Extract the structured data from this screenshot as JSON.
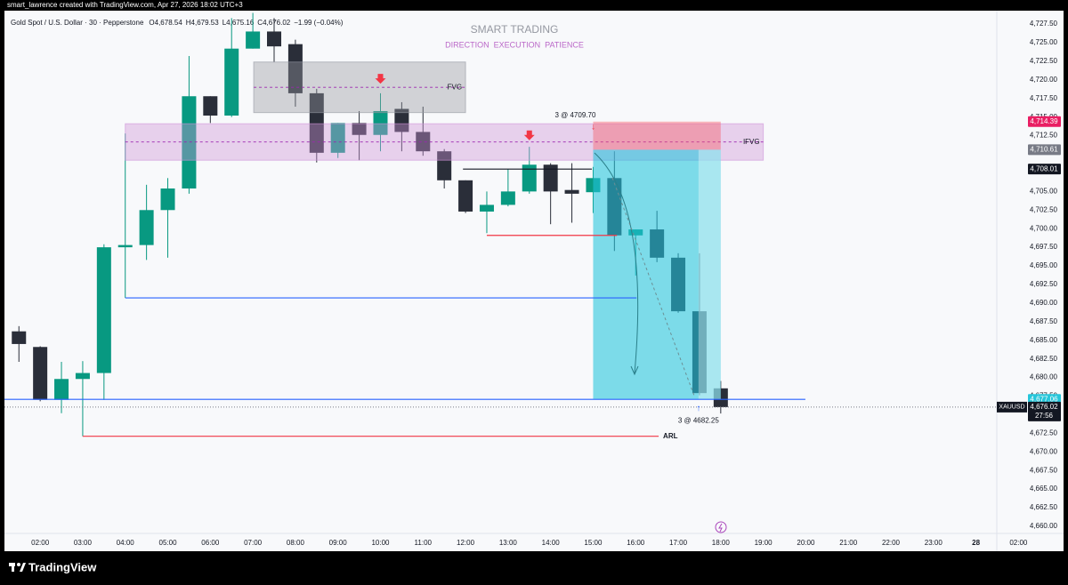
{
  "header": {
    "credit": "smart_lawrence created with TradingView.com, Apr 27, 2026 18:02 UTC+3",
    "symbol": "Gold Spot / U.S. Dollar · 30 · Pepperstone",
    "ohlc": [
      "O4,678.54",
      "H4,679.53",
      "L4,675.16",
      "C4,676.02",
      "−1.99 (−0.04%)"
    ]
  },
  "footer": {
    "brand": "TradingView"
  },
  "chart_data": {
    "type": "candlestick",
    "title": "SMART TRADING",
    "subtitle": "DIRECTION  EXECUTION  PATIENCE",
    "up_color": "#089981",
    "down_color": "#2a2e39",
    "x": [
      1.5,
      2.0,
      2.5,
      3.0,
      3.5,
      4.0,
      4.5,
      5.0,
      5.5,
      6.0,
      6.5,
      7.0,
      7.5,
      8.0,
      8.5,
      9.0,
      9.5,
      10.0,
      10.5,
      11.0,
      11.5,
      12.0,
      12.5,
      13.0,
      13.5,
      14.0,
      14.5,
      15.0,
      15.5,
      16.0,
      16.5,
      17.0,
      17.5,
      18.0
    ],
    "open": [
      4686.2,
      4684.1,
      4677.0,
      4679.8,
      4680.6,
      4697.5,
      4697.8,
      4702.5,
      4705.4,
      4717.8,
      4715.2,
      4724.2,
      4726.5,
      4724.8,
      4718.2,
      4710.2,
      4714.2,
      4712.6,
      4716.1,
      4713.0,
      4710.4,
      4706.5,
      4702.3,
      4703.2,
      4705.0,
      4708.6,
      4705.2,
      4704.9,
      4706.8,
      4699.1,
      4699.9,
      4696.1,
      4688.9,
      4678.54
    ],
    "high": [
      4686.9,
      4684.2,
      4682.1,
      4682.2,
      4697.9,
      4712.8,
      4705.9,
      4706.8,
      4723.2,
      4717.8,
      4728.3,
      4729.0,
      4728.3,
      4725.4,
      4718.8,
      4714.2,
      4715.8,
      4718.2,
      4717.0,
      4716.4,
      4710.7,
      4706.5,
      4705.0,
      4708.0,
      4711.0,
      4708.8,
      4708.8,
      4708.3,
      4710.4,
      4699.9,
      4702.4,
      4696.7,
      4696.7,
      4679.53
    ],
    "low": [
      4682.1,
      4676.8,
      4675.2,
      4672.1,
      4677.0,
      4690.7,
      4695.8,
      4696.1,
      4704.7,
      4714.2,
      4715.0,
      4724.2,
      4722.4,
      4716.4,
      4708.9,
      4709.5,
      4709.2,
      4710.4,
      4710.4,
      4709.8,
      4705.4,
      4702.1,
      4699.4,
      4703.0,
      4704.7,
      4700.6,
      4700.8,
      4702.1,
      4697.0,
      4693.7,
      4695.5,
      4688.7,
      4677.6,
      4675.16
    ],
    "close": [
      4684.5,
      4677.0,
      4679.8,
      4680.6,
      4697.5,
      4697.8,
      4702.5,
      4705.4,
      4717.8,
      4715.2,
      4724.2,
      4726.5,
      4724.5,
      4718.2,
      4710.2,
      4714.2,
      4712.6,
      4715.8,
      4713.0,
      4710.4,
      4706.5,
      4702.3,
      4703.2,
      4705.0,
      4708.6,
      4705.0,
      4704.7,
      4706.8,
      4699.1,
      4699.9,
      4696.1,
      4688.9,
      4677.9,
      4676.02
    ],
    "xlim": [
      1.16,
      24.49
    ],
    "ylim": [
      4659.04,
      4729.3
    ],
    "xticks": [
      {
        "value": 2,
        "label": "02:00"
      },
      {
        "value": 3,
        "label": "03:00"
      },
      {
        "value": 4,
        "label": "04:00"
      },
      {
        "value": 5,
        "label": "05:00"
      },
      {
        "value": 6,
        "label": "06:00"
      },
      {
        "value": 7,
        "label": "07:00"
      },
      {
        "value": 8,
        "label": "08:00"
      },
      {
        "value": 9,
        "label": "09:00"
      },
      {
        "value": 10,
        "label": "10:00"
      },
      {
        "value": 11,
        "label": "11:00"
      },
      {
        "value": 12,
        "label": "12:00"
      },
      {
        "value": 13,
        "label": "13:00"
      },
      {
        "value": 14,
        "label": "14:00"
      },
      {
        "value": 15,
        "label": "15:00"
      },
      {
        "value": 16,
        "label": "16:00"
      },
      {
        "value": 17,
        "label": "17:00"
      },
      {
        "value": 18,
        "label": "18:00"
      },
      {
        "value": 19,
        "label": "19:00"
      },
      {
        "value": 20,
        "label": "20:00"
      },
      {
        "value": 21,
        "label": "21:00"
      },
      {
        "value": 22,
        "label": "22:00"
      },
      {
        "value": 23,
        "label": "23:00"
      },
      {
        "value": 24,
        "label": "28"
      },
      {
        "value": 25,
        "label": "02:00"
      }
    ],
    "yticks": [
      {
        "value": 4727.5,
        "label": "4,727.50"
      },
      {
        "value": 4725,
        "label": "4,725.00"
      },
      {
        "value": 4722.5,
        "label": "4,722.50"
      },
      {
        "value": 4720,
        "label": "4,720.00"
      },
      {
        "value": 4717.5,
        "label": "4,717.50"
      },
      {
        "value": 4715,
        "label": "4,715.00"
      },
      {
        "value": 4712.5,
        "label": "4,712.50"
      },
      {
        "value": 4705,
        "label": "4,705.00"
      },
      {
        "value": 4702.5,
        "label": "4,702.50"
      },
      {
        "value": 4700,
        "label": "4,700.00"
      },
      {
        "value": 4697.5,
        "label": "4,697.50"
      },
      {
        "value": 4695,
        "label": "4,695.00"
      },
      {
        "value": 4692.5,
        "label": "4,692.50"
      },
      {
        "value": 4690,
        "label": "4,690.00"
      },
      {
        "value": 4687.5,
        "label": "4,687.50"
      },
      {
        "value": 4685,
        "label": "4,685.00"
      },
      {
        "value": 4682.5,
        "label": "4,682.50"
      },
      {
        "value": 4680,
        "label": "4,680.00"
      },
      {
        "value": 4677.5,
        "label": "4,677.50"
      },
      {
        "value": 4672.5,
        "label": "4,672.50"
      },
      {
        "value": 4670,
        "label": "4,670.00"
      },
      {
        "value": 4667.5,
        "label": "4,667.50"
      },
      {
        "value": 4665,
        "label": "4,665.00"
      },
      {
        "value": 4662.5,
        "label": "4,662.50"
      },
      {
        "value": 4660,
        "label": "4,660.00"
      }
    ],
    "grid": false,
    "zones": [
      {
        "label": "FVG",
        "x": [
          7.02,
          12.0
        ],
        "price": [
          4722.4,
          4715.6
        ],
        "color": "#9598a1"
      },
      {
        "label": "IFVG",
        "x": [
          4.0,
          19.0
        ],
        "price": [
          4714.1,
          4709.2
        ],
        "color": "#ce93d8"
      }
    ],
    "levels": [
      {
        "price": 4708.01,
        "x": [
          11.94,
          14.97
        ],
        "color": "#131722"
      },
      {
        "price": 4699.1,
        "x": [
          12.5,
          15.56
        ],
        "color": "#f23645"
      },
      {
        "price": 4690.7,
        "x": [
          4.0,
          16.02
        ],
        "color": "#2962ff"
      },
      {
        "price": 4677.06,
        "x": [
          1.16,
          19.99
        ],
        "color": "#2962ff"
      },
      {
        "price": 4672.1,
        "x": [
          3.0,
          16.54
        ],
        "color": "#f23645",
        "label": "ARL"
      }
    ],
    "markers": [
      {
        "x": 10.0,
        "price": 4719.6
      },
      {
        "x": 13.5,
        "price": 4712.0
      }
    ],
    "position": {
      "x": [
        15.0,
        18.0
      ],
      "stop": 4714.39,
      "entry": 4710.61,
      "target": 4677.06,
      "entry_label": "3 @ 4709.70",
      "exit_label": "3 @ 4682.25"
    },
    "price_labels": [
      {
        "value": 4714.39,
        "label": "4,714.39",
        "color": "#e91e63"
      },
      {
        "value": 4710.61,
        "label": "4,710.61",
        "color": "#787b86"
      },
      {
        "value": 4708.01,
        "label": "4,708.01",
        "color": "#131722"
      },
      {
        "value": 4677.06,
        "label": "4,677.06",
        "color": "#26c6da"
      },
      {
        "value": 4676.02,
        "label": "4,676.02",
        "color": "#131722",
        "symbol": "XAUUSD",
        "countdown": "27:56"
      }
    ]
  }
}
